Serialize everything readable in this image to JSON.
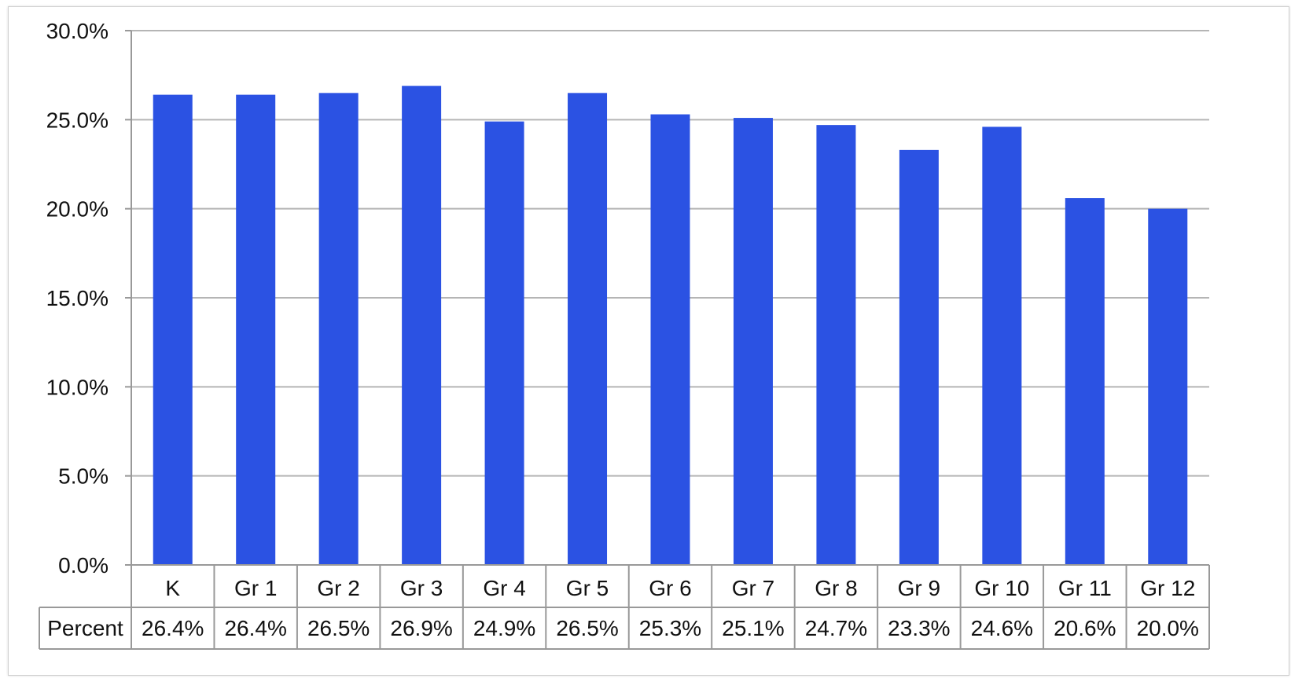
{
  "chart_data": {
    "type": "bar",
    "title": "",
    "xlabel": "",
    "ylabel": "",
    "ylim": [
      0,
      30
    ],
    "yticks": [
      "0.0%",
      "5.0%",
      "10.0%",
      "15.0%",
      "20.0%",
      "25.0%",
      "30.0%"
    ],
    "ytick_values": [
      0,
      5,
      10,
      15,
      20,
      25,
      30
    ],
    "categories": [
      "K",
      "Gr 1",
      "Gr 2",
      "Gr 3",
      "Gr 4",
      "Gr 5",
      "Gr 6",
      "Gr 7",
      "Gr 8",
      "Gr 9",
      "Gr 10",
      "Gr 11",
      "Gr 12"
    ],
    "series": [
      {
        "name": "Percent",
        "values": [
          26.4,
          26.4,
          26.5,
          26.9,
          24.9,
          26.5,
          25.3,
          25.1,
          24.7,
          23.3,
          24.6,
          20.6,
          20.0
        ],
        "labels": [
          "26.4%",
          "26.4%",
          "26.5%",
          "26.9%",
          "24.9%",
          "26.5%",
          "25.3%",
          "25.1%",
          "24.7%",
          "23.3%",
          "24.6%",
          "20.6%",
          "20.0%"
        ],
        "color": "#2B52E3"
      }
    ],
    "grid": true,
    "data_table": true,
    "gridline_color": "#b5b5b5"
  }
}
